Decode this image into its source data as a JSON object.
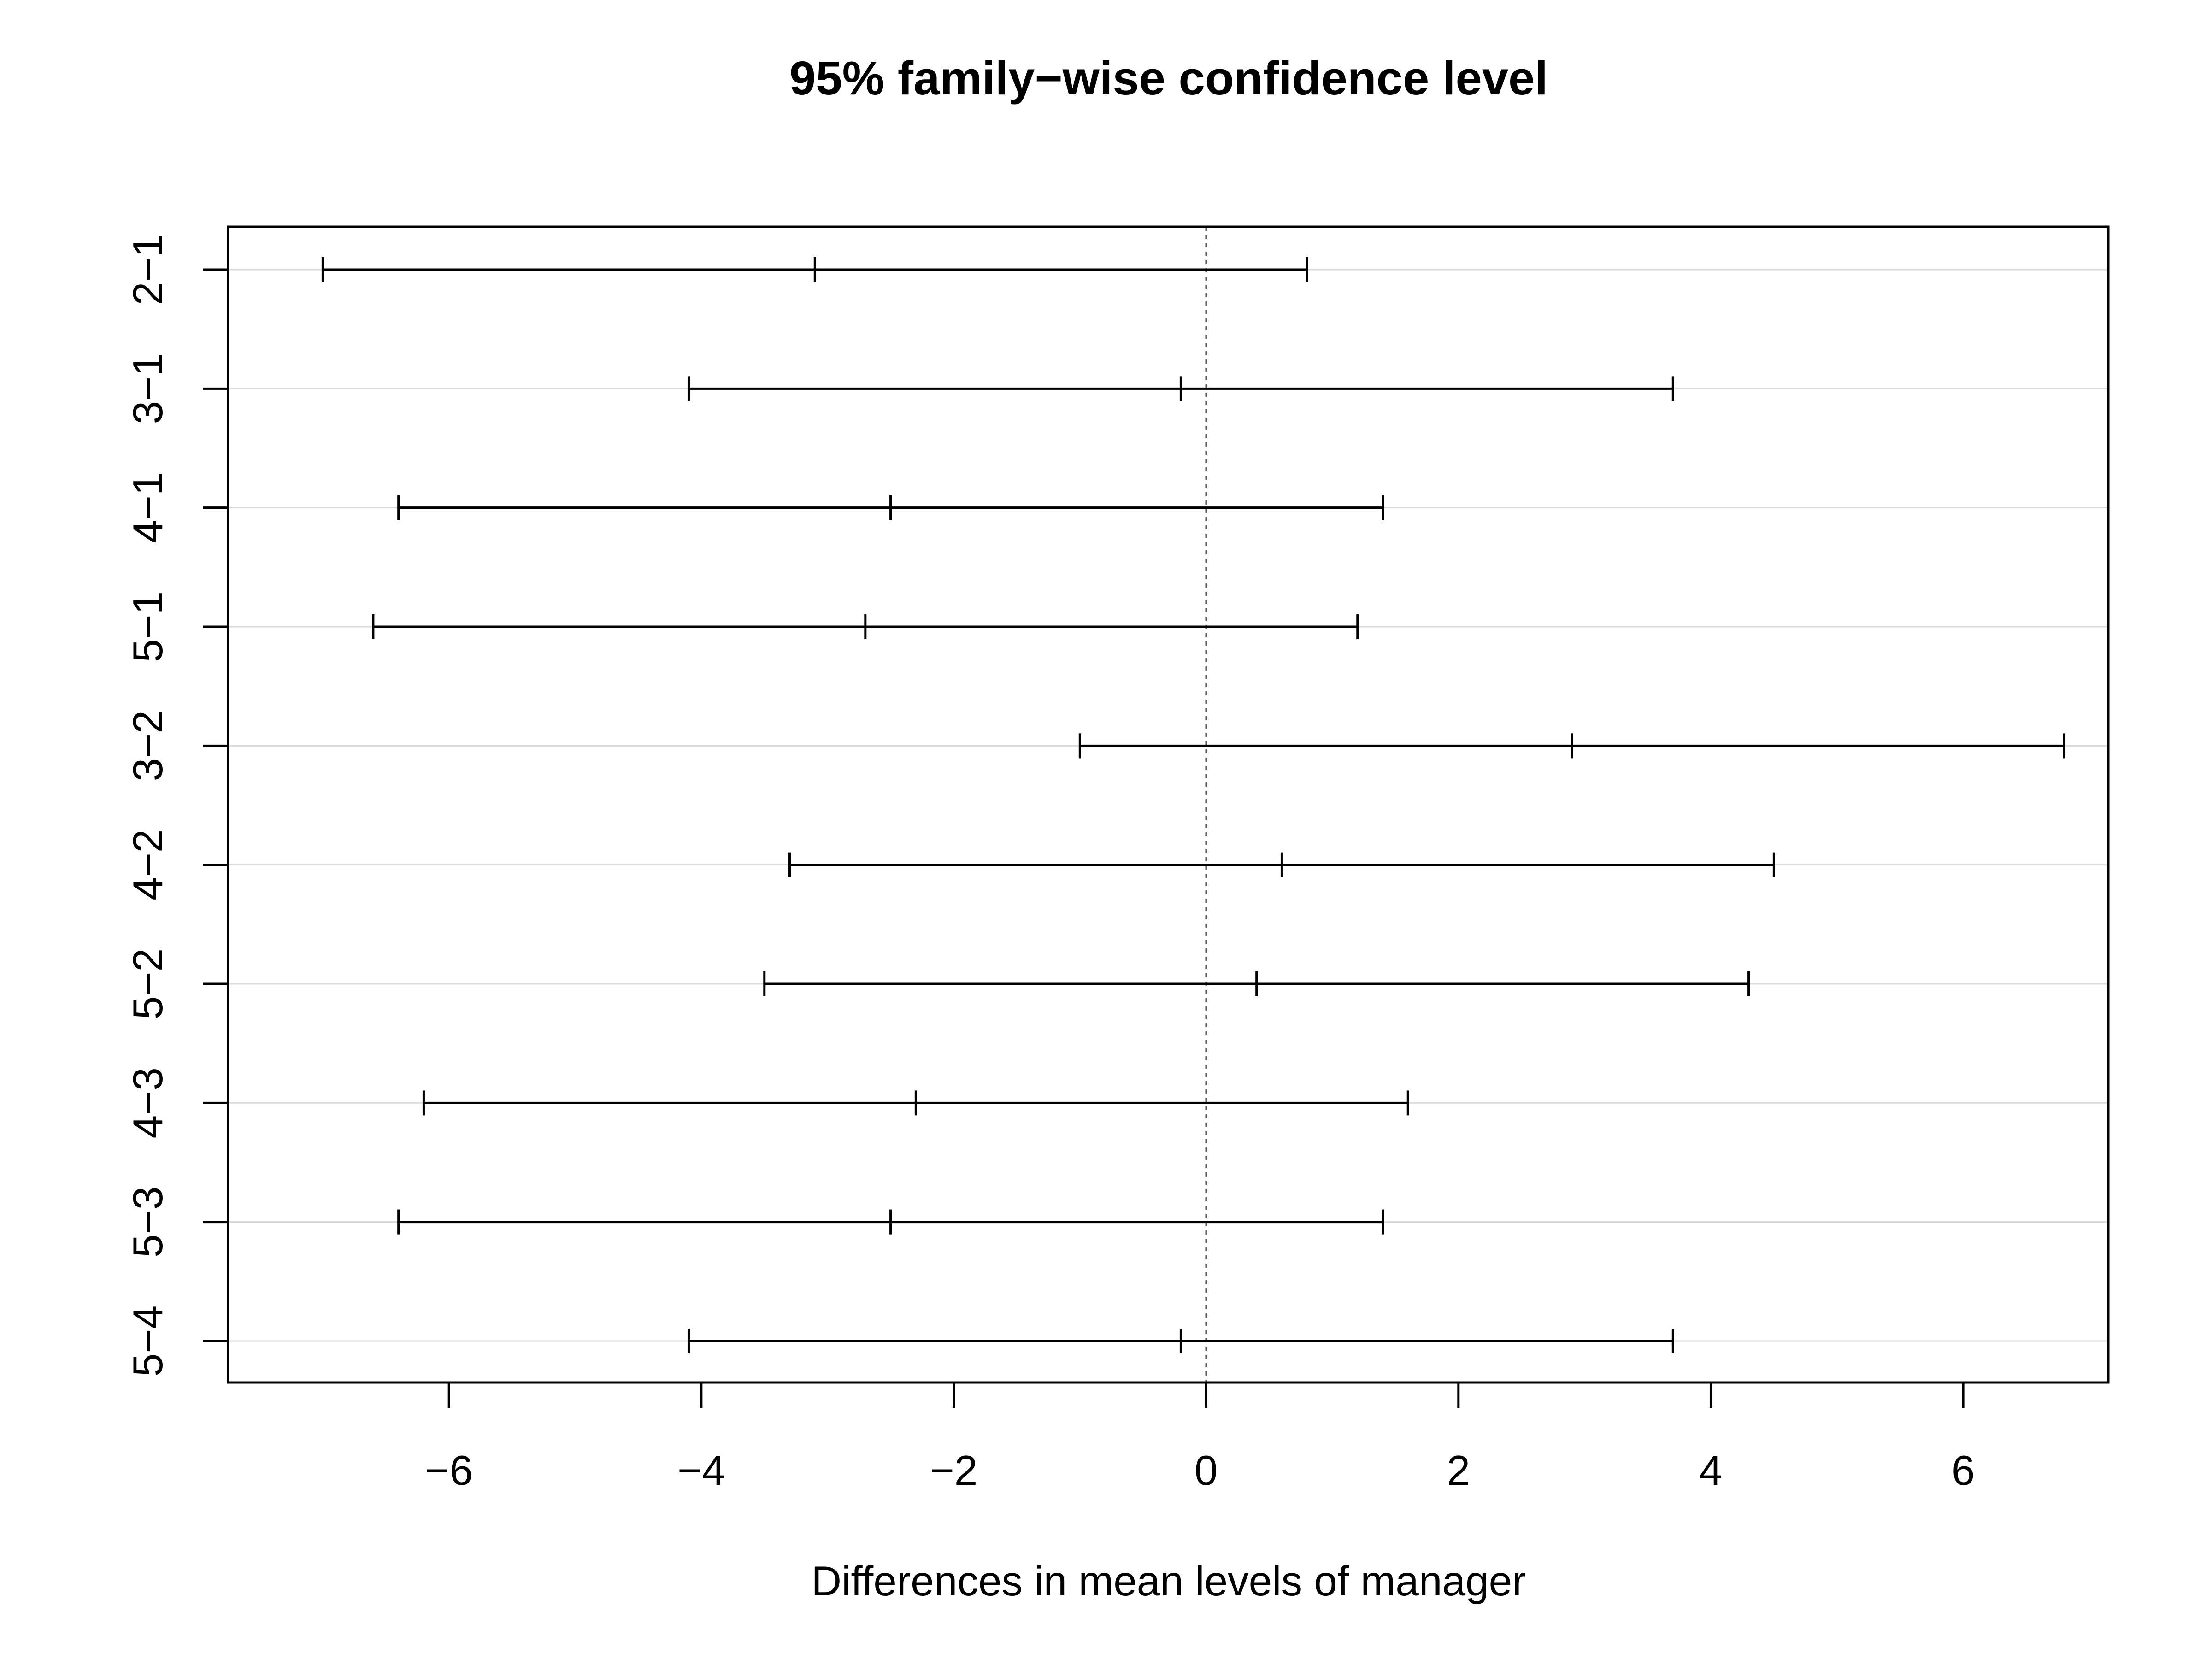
{
  "chart_data": {
    "type": "interval",
    "title": "95% family−wise confidence level",
    "xlabel": "Differences in mean levels of manager",
    "ylabel": "",
    "xlim": [
      -7.75,
      7.15
    ],
    "x_ticks": [
      -6,
      -4,
      -2,
      0,
      2,
      4,
      6
    ],
    "x_tick_labels": [
      "−6",
      "−4",
      "−2",
      "0",
      "2",
      "4",
      "6"
    ],
    "reference_line": 0,
    "grid": "horizontal",
    "categories": [
      "2−1",
      "3−1",
      "4−1",
      "5−1",
      "3−2",
      "4−2",
      "5−2",
      "4−3",
      "5−3",
      "5−4"
    ],
    "series": [
      {
        "lower": [
          -7.0,
          -4.1,
          -6.4,
          -6.6,
          -1.0,
          -3.3,
          -3.5,
          -6.2,
          -6.4,
          -4.1
        ],
        "estimate": [
          -3.1,
          -0.2,
          -2.5,
          -2.7,
          2.9,
          0.6,
          0.4,
          -2.3,
          -2.5,
          -0.2
        ],
        "upper": [
          0.8,
          3.7,
          1.4,
          1.2,
          6.8,
          4.5,
          4.3,
          1.6,
          1.4,
          3.7
        ]
      }
    ],
    "colors": {
      "interval": "#000000",
      "grid": "#d9d9d9",
      "frame": "#000000"
    }
  }
}
